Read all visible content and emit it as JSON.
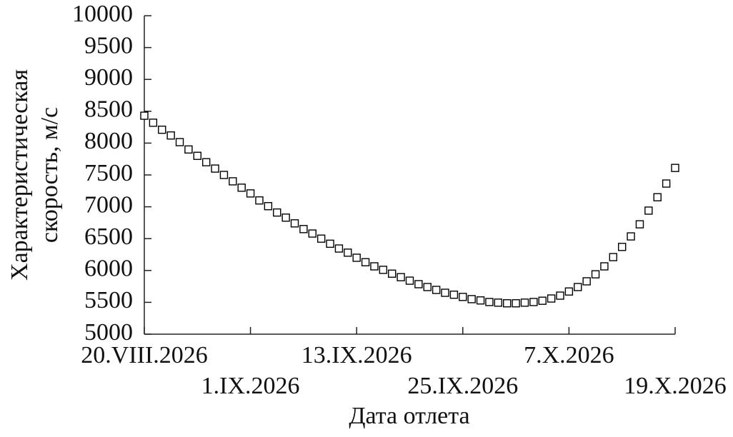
{
  "chart_data": {
    "type": "scatter",
    "ylabel": [
      "Характеристическая",
      "скорость, м/с"
    ],
    "xlabel": "Дата отлета",
    "x": [
      "2026-08-20",
      "2026-08-21",
      "2026-08-22",
      "2026-08-23",
      "2026-08-24",
      "2026-08-25",
      "2026-08-26",
      "2026-08-27",
      "2026-08-28",
      "2026-08-29",
      "2026-08-30",
      "2026-08-31",
      "2026-09-01",
      "2026-09-02",
      "2026-09-03",
      "2026-09-04",
      "2026-09-05",
      "2026-09-06",
      "2026-09-07",
      "2026-09-08",
      "2026-09-09",
      "2026-09-10",
      "2026-09-11",
      "2026-09-12",
      "2026-09-13",
      "2026-09-14",
      "2026-09-15",
      "2026-09-16",
      "2026-09-17",
      "2026-09-18",
      "2026-09-19",
      "2026-09-20",
      "2026-09-21",
      "2026-09-22",
      "2026-09-23",
      "2026-09-24",
      "2026-09-25",
      "2026-09-26",
      "2026-09-27",
      "2026-09-28",
      "2026-09-29",
      "2026-09-30",
      "2026-10-01",
      "2026-10-02",
      "2026-10-03",
      "2026-10-04",
      "2026-10-05",
      "2026-10-06",
      "2026-10-07",
      "2026-10-08",
      "2026-10-09",
      "2026-10-10",
      "2026-10-11",
      "2026-10-12",
      "2026-10-13",
      "2026-10-14",
      "2026-10-15",
      "2026-10-16",
      "2026-10-17",
      "2026-10-18",
      "2026-10-19"
    ],
    "values": [
      8430,
      8320,
      8210,
      8120,
      8015,
      7900,
      7800,
      7700,
      7600,
      7500,
      7400,
      7300,
      7210,
      7100,
      7010,
      6910,
      6830,
      6740,
      6650,
      6580,
      6500,
      6420,
      6345,
      6280,
      6200,
      6130,
      6065,
      6010,
      5950,
      5895,
      5840,
      5785,
      5740,
      5695,
      5650,
      5620,
      5585,
      5550,
      5530,
      5505,
      5495,
      5485,
      5485,
      5495,
      5505,
      5525,
      5560,
      5605,
      5670,
      5740,
      5830,
      5940,
      6065,
      6210,
      6370,
      6535,
      6725,
      6940,
      7150,
      7365,
      7610
    ],
    "color": "#000000",
    "xlim": [
      "2026-08-20",
      "2026-10-19"
    ],
    "xticks": [
      {
        "value": "2026-08-20",
        "label": "20.VIII.2026"
      },
      {
        "value": "2026-09-01",
        "label": "1.IX.2026"
      },
      {
        "value": "2026-09-13",
        "label": "13.IX.2026"
      },
      {
        "value": "2026-09-25",
        "label": "25.IX.2026"
      },
      {
        "value": "2026-10-07",
        "label": "7.X.2026"
      },
      {
        "value": "2026-10-19",
        "label": "19.X.2026"
      }
    ],
    "ylim": [
      5000,
      10000
    ],
    "yticks": [
      5000,
      5500,
      6000,
      6500,
      7000,
      7500,
      8000,
      8500,
      9000,
      9500,
      10000
    ]
  }
}
